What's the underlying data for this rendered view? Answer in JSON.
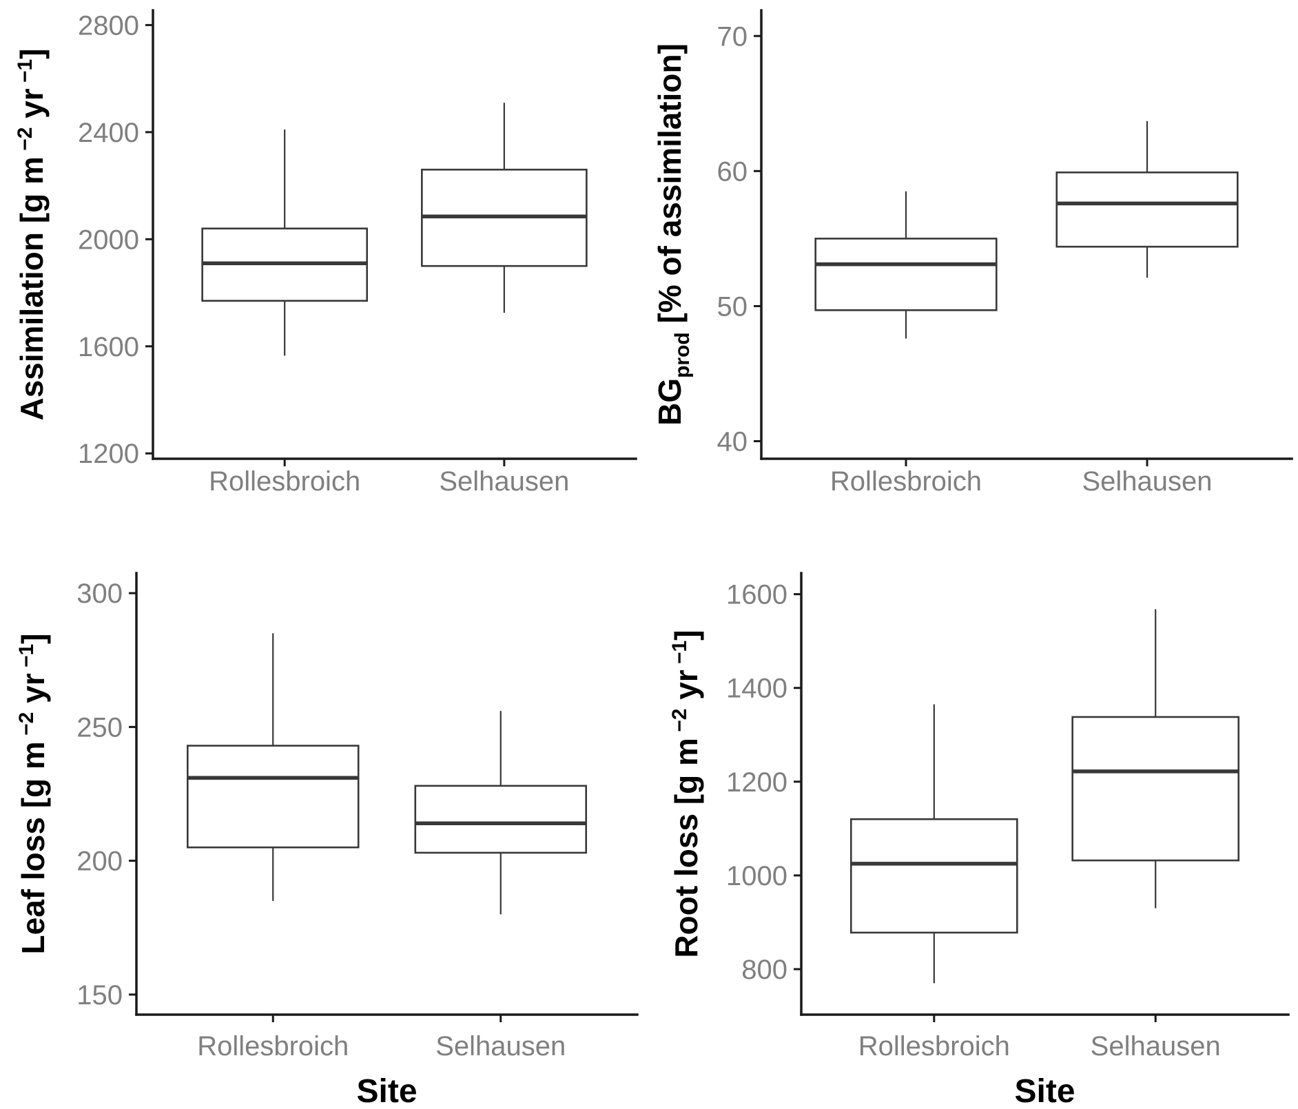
{
  "figure": {
    "background": "#ffffff",
    "description_visible_text_only": true
  },
  "style": {
    "axis_color": "#1a1a1a",
    "box_line_color": "#383838",
    "tick_label_color": "#7f7f7f",
    "title_color": "#000000",
    "box_fill": "#ffffff"
  },
  "chart_data": [
    {
      "type": "boxplot",
      "id": "assimilation",
      "title": "",
      "ylabel": "Assimilation [g m⁻² yr⁻¹]",
      "ylabel_rich": [
        {
          "text": "Assimilation [g m"
        },
        {
          "text": " −2",
          "script": "super"
        },
        {
          "text": " yr"
        },
        {
          "text": " −1",
          "script": "super"
        },
        {
          "text": "]"
        }
      ],
      "xlabel": "",
      "categories": [
        "Rollesbroich",
        "Selhausen"
      ],
      "yticks": [
        1200,
        1600,
        2000,
        2400,
        2800
      ],
      "ylim": [
        1180,
        2855
      ],
      "grid": false,
      "legend": "none",
      "series": [
        {
          "category": "Rollesbroich",
          "whisker_low": 1565,
          "q1": 1770,
          "median": 1910,
          "q3": 2040,
          "whisker_high": 2410
        },
        {
          "category": "Selhausen",
          "whisker_low": 1725,
          "q1": 1900,
          "median": 2085,
          "q3": 2260,
          "whisker_high": 2510
        }
      ]
    },
    {
      "type": "boxplot",
      "id": "bg-prod",
      "title": "",
      "ylabel": "BGprod [% of assimilation]",
      "ylabel_rich": [
        {
          "text": "BG"
        },
        {
          "text": "prod",
          "script": "sub"
        },
        {
          "text": " [% of assimilation]"
        }
      ],
      "xlabel": "",
      "categories": [
        "Rollesbroich",
        "Selhausen"
      ],
      "yticks": [
        40,
        50,
        60,
        70
      ],
      "ylim": [
        38.7,
        71.9
      ],
      "grid": false,
      "legend": "none",
      "series": [
        {
          "category": "Rollesbroich",
          "whisker_low": 47.6,
          "q1": 49.7,
          "median": 53.1,
          "q3": 55.0,
          "whisker_high": 58.5
        },
        {
          "category": "Selhausen",
          "whisker_low": 52.1,
          "q1": 54.4,
          "median": 57.6,
          "q3": 59.9,
          "whisker_high": 63.7
        }
      ]
    },
    {
      "type": "boxplot",
      "id": "leaf-loss",
      "title": "",
      "ylabel": "Leaf loss [g m⁻² yr⁻¹]",
      "ylabel_rich": [
        {
          "text": "Leaf loss [g m"
        },
        {
          "text": " −2",
          "script": "super"
        },
        {
          "text": " yr"
        },
        {
          "text": " −1",
          "script": "super"
        },
        {
          "text": "]"
        }
      ],
      "xlabel": "Site",
      "categories": [
        "Rollesbroich",
        "Selhausen"
      ],
      "yticks": [
        150,
        200,
        250,
        300
      ],
      "ylim": [
        142.5,
        307.5
      ],
      "grid": false,
      "legend": "none",
      "series": [
        {
          "category": "Rollesbroich",
          "whisker_low": 185,
          "q1": 205,
          "median": 231,
          "q3": 243,
          "whisker_high": 285
        },
        {
          "category": "Selhausen",
          "whisker_low": 180,
          "q1": 203,
          "median": 214,
          "q3": 228,
          "whisker_high": 256
        }
      ]
    },
    {
      "type": "boxplot",
      "id": "root-loss",
      "title": "",
      "ylabel": "Root loss [g m⁻² yr⁻¹]",
      "ylabel_rich": [
        {
          "text": "Root loss [g m"
        },
        {
          "text": " −2",
          "script": "super"
        },
        {
          "text": " yr"
        },
        {
          "text": " −1",
          "script": "super"
        },
        {
          "text": "]"
        }
      ],
      "xlabel": "Site",
      "categories": [
        "Rollesbroich",
        "Selhausen"
      ],
      "yticks": [
        800,
        1000,
        1200,
        1400,
        1600
      ],
      "ylim": [
        703,
        1645
      ],
      "grid": false,
      "legend": "none",
      "series": [
        {
          "category": "Rollesbroich",
          "whisker_low": 770,
          "q1": 878,
          "median": 1025,
          "q3": 1120,
          "whisker_high": 1365
        },
        {
          "category": "Selhausen",
          "whisker_low": 930,
          "q1": 1032,
          "median": 1222,
          "q3": 1338,
          "whisker_high": 1568
        }
      ]
    }
  ]
}
